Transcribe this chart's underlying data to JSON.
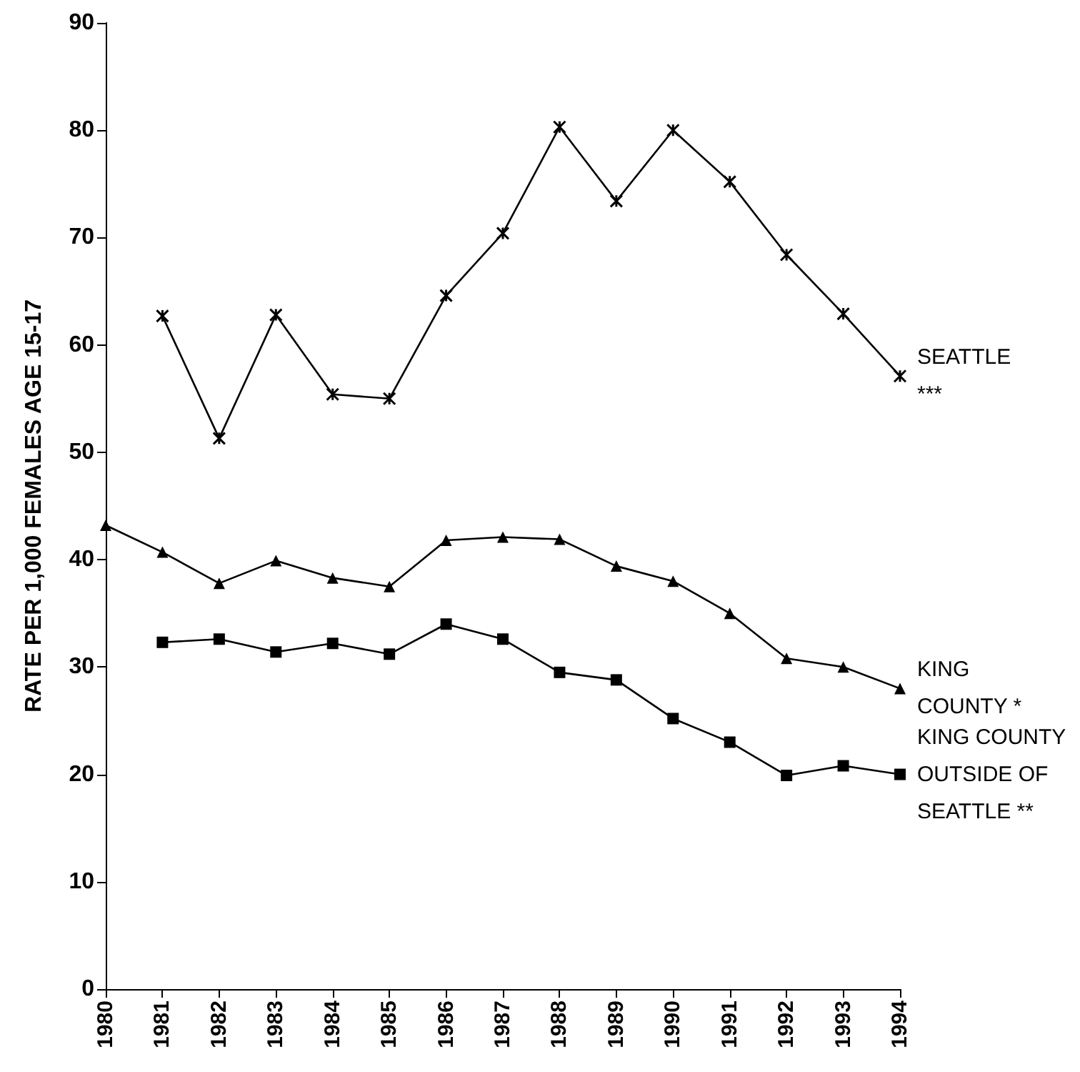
{
  "chart_data": {
    "type": "line",
    "ylabel": "RATE PER 1,000 FEMALES AGE 15-17",
    "xlim": [
      1980,
      1994
    ],
    "xticks": [
      1980,
      1981,
      1982,
      1983,
      1984,
      1985,
      1986,
      1987,
      1988,
      1989,
      1990,
      1991,
      1992,
      1993,
      1994
    ],
    "ylim": [
      0,
      90
    ],
    "yticks": [
      0,
      10,
      20,
      30,
      40,
      50,
      60,
      70,
      80,
      90
    ],
    "grid": false,
    "legend": false,
    "line_style": "solid",
    "series": [
      {
        "name": "SEATTLE\n***",
        "color": "#000000",
        "marker": "cross",
        "x": [
          1981,
          1982,
          1983,
          1984,
          1985,
          1986,
          1987,
          1988,
          1989,
          1990,
          1991,
          1992,
          1993,
          1994
        ],
        "values": [
          62.7,
          51.3,
          62.8,
          55.4,
          55.0,
          64.6,
          70.4,
          80.3,
          73.4,
          80.0,
          75.2,
          68.4,
          62.9,
          57.1
        ]
      },
      {
        "name": "KING\nCOUNTY *",
        "color": "#000000",
        "marker": "triangle",
        "x": [
          1980,
          1981,
          1982,
          1983,
          1984,
          1985,
          1986,
          1987,
          1988,
          1989,
          1990,
          1991,
          1992,
          1993,
          1994
        ],
        "values": [
          43.2,
          40.7,
          37.8,
          39.9,
          38.3,
          37.5,
          41.8,
          42.1,
          41.9,
          39.4,
          38.0,
          35.0,
          30.8,
          30.0,
          28.0
        ]
      },
      {
        "name": "KING COUNTY\nOUTSIDE OF\nSEATTLE **",
        "color": "#000000",
        "marker": "square",
        "x": [
          1981,
          1982,
          1983,
          1984,
          1985,
          1986,
          1987,
          1988,
          1989,
          1990,
          1991,
          1992,
          1993,
          1994
        ],
        "values": [
          32.3,
          32.6,
          31.4,
          32.2,
          31.2,
          34.0,
          32.6,
          29.5,
          28.8,
          25.2,
          23.0,
          19.9,
          20.8,
          20.0
        ]
      }
    ]
  }
}
